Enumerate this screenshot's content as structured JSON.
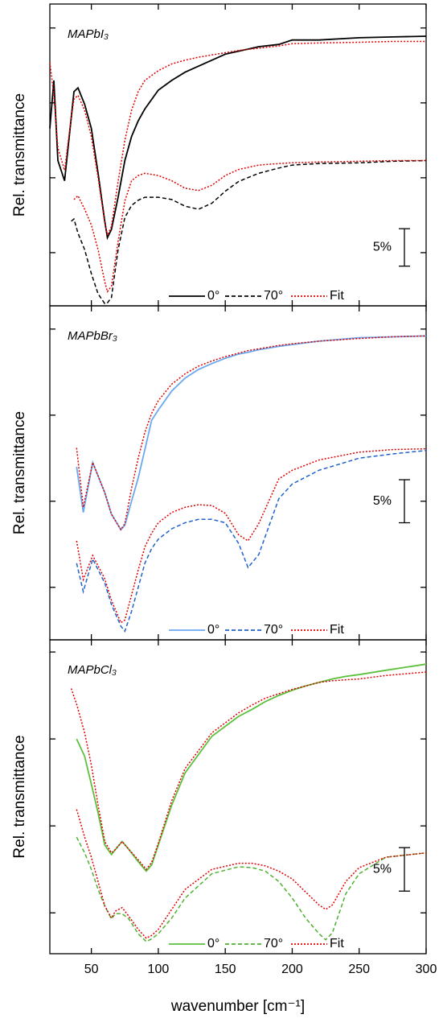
{
  "chart_data": [
    {
      "type": "line",
      "title": "MAPbI₃",
      "ylabel": "Rel. transmittance",
      "x": [
        19,
        22,
        25,
        30,
        35,
        37,
        40,
        45,
        50,
        55,
        60,
        62,
        65,
        70,
        75,
        80,
        85,
        90,
        100,
        110,
        120,
        130,
        140,
        150,
        160,
        175,
        190,
        200,
        220,
        250,
        275,
        300
      ],
      "series": [
        {
          "name": "0°",
          "color": "#000000",
          "dash": "solid",
          "values": [
            26.6,
            33.0,
            22.3,
            19.6,
            28.0,
            31.5,
            32.0,
            29.8,
            26.6,
            20.6,
            14.2,
            12.0,
            13.1,
            17.4,
            22.3,
            25.5,
            27.6,
            29.2,
            31.7,
            33.0,
            34.1,
            34.9,
            35.7,
            36.5,
            36.9,
            37.5,
            37.8,
            38.4,
            38.4,
            38.7,
            38.8,
            38.9
          ]
        },
        {
          "name": "70°",
          "color": "#000000",
          "dash": "dashed",
          "values": [
            null,
            null,
            null,
            null,
            14.2,
            14.5,
            12.6,
            10.4,
            7.2,
            4.5,
            3.2,
            3.3,
            4.0,
            10.4,
            14.7,
            16.3,
            17.0,
            17.4,
            17.4,
            17.1,
            16.2,
            15.8,
            16.6,
            18.2,
            19.5,
            20.6,
            21.3,
            21.7,
            21.9,
            22.0,
            22.2,
            22.3
          ]
        },
        {
          "name": "Fit",
          "color": "#e00000",
          "dash": "dotted",
          "values": [
            35.4,
            31.0,
            24.0,
            21.0,
            28.0,
            30.5,
            31.0,
            29.0,
            25.5,
            20.0,
            14.0,
            12.3,
            13.5,
            19.5,
            25.0,
            29.0,
            31.5,
            33.0,
            34.3,
            35.2,
            35.7,
            36.1,
            36.4,
            36.7,
            37.0,
            37.3,
            37.6,
            37.9,
            38.0,
            38.1,
            38.2,
            38.2
          ]
        },
        {
          "name": "Fit",
          "color": "#e00000",
          "dash": "dotted",
          "legend": false,
          "values": [
            null,
            null,
            null,
            null,
            null,
            17.1,
            17.6,
            15.8,
            13.7,
            10.4,
            6.1,
            4.8,
            5.5,
            11.5,
            16.9,
            19.6,
            20.3,
            20.6,
            20.3,
            19.6,
            18.6,
            18.3,
            19.0,
            20.3,
            21.1,
            21.7,
            21.9,
            22.0,
            22.1,
            22.2,
            22.3,
            22.3
          ]
        }
      ],
      "xlim": [
        19,
        300
      ],
      "xticks": [
        50,
        100,
        150,
        200,
        250,
        300
      ],
      "ylim": [
        2.9,
        43.2
      ],
      "yticks": [
        10,
        20,
        30,
        40
      ],
      "scale_bar": {
        "value": 5,
        "label": "5%",
        "from": 8.2
      }
    },
    {
      "type": "line",
      "title": "MAPbBr₃",
      "ylabel": "Rel. transmittance",
      "x": [
        39,
        44,
        51,
        60,
        65,
        72,
        75,
        80,
        85,
        90,
        95,
        100,
        110,
        120,
        130,
        140,
        150,
        160,
        167,
        175,
        190,
        200,
        220,
        250,
        275,
        300
      ],
      "series": [
        {
          "name": "0°",
          "color": "#6aa8f0",
          "dash": "solid",
          "values": [
            24.0,
            18.7,
            24.5,
            21.0,
            18.5,
            16.7,
            17.2,
            20.0,
            22.7,
            26.0,
            29.4,
            30.6,
            32.8,
            34.3,
            35.3,
            36.0,
            36.6,
            37.1,
            37.3,
            37.6,
            38.0,
            38.2,
            38.6,
            39.0,
            39.1,
            39.2
          ]
        },
        {
          "name": "70°",
          "color": "#1f62cc",
          "dash": "dashed",
          "values": [
            12.8,
            9.5,
            13.3,
            10.5,
            8.0,
            5.5,
            4.9,
            7.2,
            10.0,
            12.8,
            14.5,
            15.6,
            16.8,
            17.5,
            17.9,
            17.9,
            17.5,
            15.1,
            12.3,
            13.8,
            20.3,
            22.0,
            23.6,
            25.0,
            25.5,
            25.9
          ]
        },
        {
          "name": "Fit",
          "color": "#e00000",
          "dash": "dotted",
          "values": [
            26.2,
            19.3,
            24.5,
            21.0,
            18.5,
            16.7,
            17.4,
            21.5,
            25.0,
            28.0,
            30.2,
            31.7,
            33.6,
            34.8,
            35.7,
            36.3,
            36.8,
            37.2,
            37.5,
            37.7,
            38.1,
            38.3,
            38.6,
            38.9,
            39.1,
            39.2
          ]
        },
        {
          "name": "Fit",
          "color": "#e00000",
          "dash": "dotted",
          "legend": false,
          "values": [
            15.4,
            10.9,
            13.7,
            11.0,
            8.5,
            5.9,
            6.2,
            9.1,
            12.0,
            14.7,
            16.3,
            17.5,
            18.7,
            19.3,
            19.6,
            19.5,
            18.6,
            16.1,
            15.4,
            17.4,
            22.6,
            23.6,
            24.8,
            25.7,
            26.0,
            26.1
          ]
        }
      ],
      "xlim": [
        19,
        300
      ],
      "xticks": [
        50,
        100,
        150,
        200,
        250,
        300
      ],
      "ylim": [
        3.9,
        42.7
      ],
      "yticks": [
        10,
        20,
        30,
        40
      ],
      "scale_bar": {
        "value": 5,
        "label": "5%",
        "from": 17.5
      }
    },
    {
      "type": "line",
      "title": "MAPbCl₃",
      "ylabel": "Rel. transmittance",
      "xlabel": "wavenumber [cm⁻¹]",
      "x": [
        35,
        39,
        45,
        50,
        55,
        60,
        65,
        68,
        73,
        78,
        85,
        91,
        95,
        100,
        110,
        120,
        140,
        160,
        170,
        180,
        190,
        200,
        210,
        220,
        225,
        230,
        240,
        250,
        270,
        300
      ],
      "series": [
        {
          "name": "0°",
          "color": "#5cc03c",
          "dash": "solid",
          "values": [
            null,
            30.0,
            28.0,
            24.8,
            21.5,
            17.8,
            16.7,
            17.3,
            18.2,
            17.3,
            15.9,
            14.8,
            15.5,
            17.8,
            22.4,
            26.1,
            30.3,
            32.6,
            33.4,
            34.3,
            35.0,
            35.6,
            36.1,
            36.5,
            36.7,
            36.9,
            37.2,
            37.4,
            37.9,
            38.6
          ]
        },
        {
          "name": "70°",
          "color": "#50b030",
          "dash": "dashed",
          "values": [
            null,
            18.7,
            16.9,
            15.0,
            12.7,
            10.8,
            9.3,
            9.9,
            9.9,
            9.3,
            7.6,
            6.7,
            7.0,
            7.6,
            9.4,
            11.7,
            14.5,
            15.3,
            15.2,
            14.8,
            13.6,
            11.7,
            9.4,
            7.6,
            6.9,
            7.7,
            12.2,
            14.5,
            16.4,
            16.9
          ]
        },
        {
          "name": "Fit",
          "color": "#e00000",
          "dash": "dotted",
          "values": [
            35.8,
            34.0,
            30.7,
            27.0,
            22.4,
            18.2,
            16.9,
            17.3,
            18.2,
            17.3,
            16.1,
            15.0,
            15.8,
            18.0,
            22.9,
            26.6,
            30.7,
            33.0,
            33.9,
            34.7,
            35.2,
            35.7,
            36.1,
            36.5,
            36.6,
            36.7,
            36.8,
            36.9,
            37.3,
            37.7
          ]
        },
        {
          "name": "Fit",
          "color": "#e00000",
          "dash": "dotted",
          "legend": false,
          "values": [
            null,
            21.9,
            18.7,
            16.4,
            13.6,
            10.8,
            9.4,
            10.2,
            10.6,
            9.6,
            8.1,
            7.1,
            7.4,
            8.1,
            10.4,
            12.7,
            15.0,
            15.7,
            15.7,
            15.4,
            14.8,
            13.9,
            12.4,
            10.9,
            10.4,
            10.9,
            13.6,
            15.2,
            16.4,
            16.9
          ]
        }
      ],
      "xlim": [
        19,
        300
      ],
      "xticks": [
        50,
        100,
        150,
        200,
        250,
        300
      ],
      "ylim": [
        5.3,
        41.4
      ],
      "yticks": [
        10,
        20,
        30,
        40
      ],
      "scale_bar": {
        "value": 5,
        "label": "5%",
        "from": 12.5
      }
    }
  ]
}
